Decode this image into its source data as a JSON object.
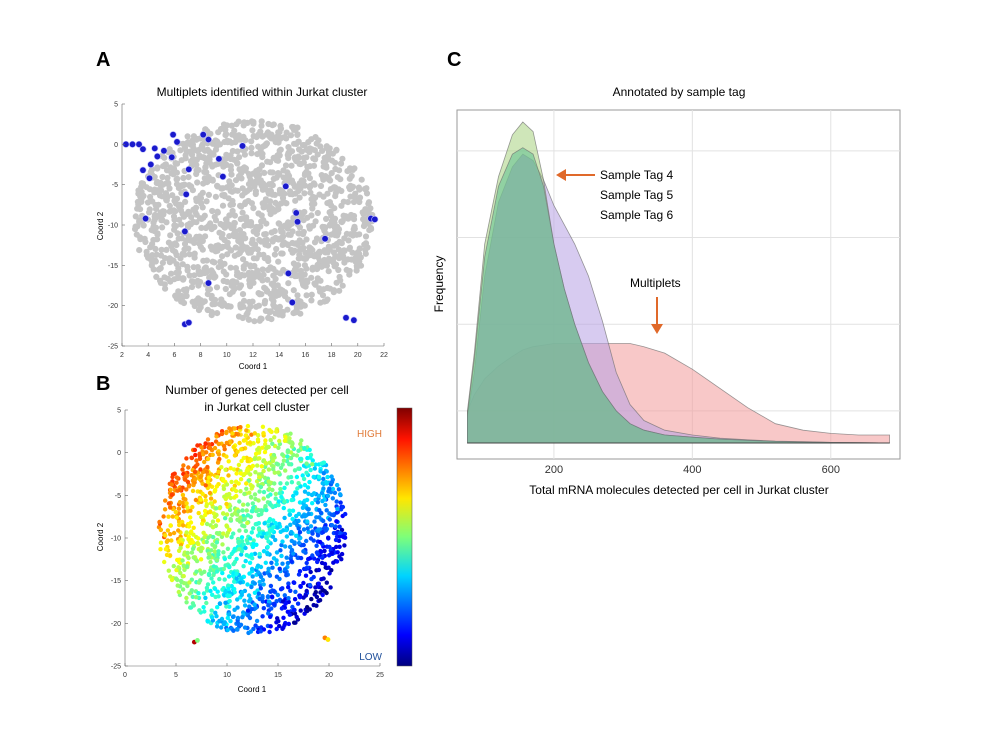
{
  "colors": {
    "scatter_gray": "#c4c4c4",
    "multiplet_blue": "#1a1acc",
    "arrow_orange": "#e0692a",
    "high_label": "#e07b39",
    "low_label": "#1f4f9a",
    "series_tag4": "#a7d27f",
    "series_tag5": "#5fbf8f",
    "series_tag6": "#b7a1e3",
    "series_multiplets": "#f29b9b",
    "series_overlap": "#7aa6a8"
  },
  "panels": {
    "A": {
      "letter": "A"
    },
    "B": {
      "letter": "B",
      "high_label": "HIGH",
      "low_label": "LOW",
      "colorbar": "jet"
    },
    "C": {
      "letter": "C"
    }
  },
  "chart_data": [
    {
      "panel": "A",
      "type": "scatter",
      "title": "Multiplets identified within Jurkat cluster",
      "xlabel": "Coord 1",
      "ylabel": "Coord 2",
      "xlim": [
        2,
        22
      ],
      "ylim": [
        -25,
        5
      ],
      "xticks": [
        "2",
        "4",
        "6",
        "8",
        "10",
        "12",
        "14",
        "16",
        "18",
        "20",
        "22"
      ],
      "yticks": [
        "5",
        "0",
        "-5",
        "-10",
        "-15",
        "-20",
        "-25"
      ],
      "grid": false,
      "series": [
        {
          "role": "all cells",
          "color": "#c4c4c4",
          "distribution": "dense cloud spanning x 3-21, y -22-3"
        },
        {
          "role": "multiplets",
          "color": "#1a1acc",
          "points": [
            [
              2.3,
              0
            ],
            [
              2.8,
              0
            ],
            [
              3.3,
              0
            ],
            [
              3.6,
              -0.6
            ],
            [
              4.5,
              -0.5
            ],
            [
              4.7,
              -1.5
            ],
            [
              4.2,
              -2.5
            ],
            [
              3.6,
              -3.2
            ],
            [
              4.1,
              -4.2
            ],
            [
              5.2,
              -0.8
            ],
            [
              5.8,
              -1.6
            ],
            [
              5.9,
              1.2
            ],
            [
              6.2,
              0.3
            ],
            [
              6.9,
              -6.2
            ],
            [
              7.1,
              -3.1
            ],
            [
              8.2,
              1.2
            ],
            [
              8.6,
              0.6
            ],
            [
              9.4,
              -1.8
            ],
            [
              9.7,
              -4.0
            ],
            [
              11.2,
              -0.2
            ],
            [
              3.8,
              -9.2
            ],
            [
              6.8,
              -10.8
            ],
            [
              8.6,
              -17.2
            ],
            [
              14.5,
              -5.2
            ],
            [
              15.3,
              -8.5
            ],
            [
              15.4,
              -9.6
            ],
            [
              14.7,
              -16.0
            ],
            [
              15.0,
              -19.6
            ],
            [
              17.5,
              -11.7
            ],
            [
              21.0,
              -9.2
            ],
            [
              21.3,
              -9.3
            ],
            [
              6.8,
              -22.3
            ],
            [
              7.1,
              -22.1
            ],
            [
              19.1,
              -21.5
            ],
            [
              19.7,
              -21.8
            ]
          ]
        }
      ]
    },
    {
      "panel": "B",
      "type": "scatter",
      "title": "Number of genes detected per cell",
      "subtitle": "in Jurkat cell cluster",
      "xlabel": "Coord 1",
      "ylabel": "Coord 2",
      "xlim": [
        0,
        25
      ],
      "ylim": [
        -25,
        5
      ],
      "xticks": [
        "0",
        "5",
        "10",
        "15",
        "20",
        "25"
      ],
      "yticks": [
        "5",
        "0",
        "-5",
        "-10",
        "-15",
        "-20",
        "-25"
      ],
      "color_scale": {
        "min_label": "LOW",
        "max_label": "HIGH",
        "colormap": "jet"
      },
      "trend": "gene count high (red) near upper-left x 2-7 y -2-1, decreasing to low (blue) at lower-right x 15-21 y -10--16"
    },
    {
      "panel": "C",
      "type": "area",
      "title": "Annotated by sample tag",
      "xlabel": "Total mRNA molecules detected per cell in Jurkat cluster",
      "ylabel": "Frequency",
      "xlim": [
        60,
        700
      ],
      "ylim": [
        0,
        1.0
      ],
      "xticks": [
        200,
        400,
        600
      ],
      "grid": true,
      "x": [
        75,
        85,
        100,
        120,
        140,
        155,
        170,
        185,
        200,
        215,
        230,
        250,
        270,
        290,
        310,
        330,
        360,
        400,
        440,
        480,
        520,
        560,
        600,
        640,
        685
      ],
      "series": [
        {
          "name": "Sample Tag 4",
          "color": "#a7d27f",
          "values": [
            0.1,
            0.28,
            0.62,
            0.83,
            0.96,
            1.0,
            0.97,
            0.82,
            0.62,
            0.48,
            0.37,
            0.25,
            0.16,
            0.1,
            0.06,
            0.04,
            0.025,
            0.018,
            0.012,
            0.008,
            0.005,
            0.003,
            0.002,
            0.001,
            0.0
          ]
        },
        {
          "name": "Sample Tag 5",
          "color": "#5fbf8f",
          "values": [
            0.09,
            0.26,
            0.58,
            0.8,
            0.9,
            0.92,
            0.9,
            0.8,
            0.62,
            0.48,
            0.37,
            0.25,
            0.16,
            0.1,
            0.06,
            0.04,
            0.025,
            0.018,
            0.012,
            0.008,
            0.005,
            0.003,
            0.002,
            0.001,
            0.0
          ]
        },
        {
          "name": "Sample Tag 6",
          "color": "#b7a1e3",
          "values": [
            0.08,
            0.22,
            0.52,
            0.75,
            0.86,
            0.9,
            0.88,
            0.82,
            0.74,
            0.68,
            0.62,
            0.52,
            0.38,
            0.22,
            0.12,
            0.07,
            0.04,
            0.025,
            0.015,
            0.01,
            0.006,
            0.004,
            0.002,
            0.001,
            0.0
          ]
        },
        {
          "name": "Multiplets",
          "color": "#f29b9b",
          "values": [
            0.1,
            0.15,
            0.2,
            0.24,
            0.27,
            0.29,
            0.3,
            0.305,
            0.31,
            0.31,
            0.31,
            0.31,
            0.31,
            0.31,
            0.31,
            0.3,
            0.28,
            0.23,
            0.17,
            0.11,
            0.06,
            0.04,
            0.03,
            0.025,
            0.025
          ]
        }
      ],
      "annotations": {
        "tags": [
          "Sample Tag 4",
          "Sample Tag 5",
          "Sample Tag 6"
        ],
        "multiplets": "Multiplets"
      }
    }
  ]
}
